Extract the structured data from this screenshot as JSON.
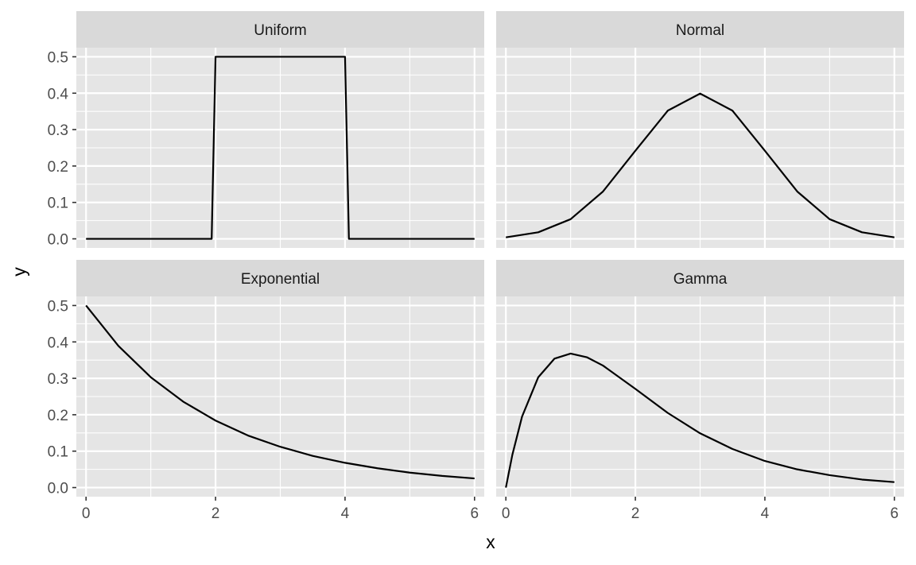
{
  "chart_data": {
    "type": "line",
    "layout": "facet-grid 2x2",
    "xlabel": "x",
    "ylabel": "y",
    "xlim": [
      -0.15,
      6.15
    ],
    "ylim": [
      -0.025,
      0.525
    ],
    "x_ticks": [
      "0",
      "2",
      "4",
      "6"
    ],
    "x_tick_values": [
      0,
      2,
      4,
      6
    ],
    "y_ticks": [
      "0.0",
      "0.1",
      "0.2",
      "0.3",
      "0.4",
      "0.5"
    ],
    "y_tick_values": [
      0,
      0.1,
      0.2,
      0.3,
      0.4,
      0.5
    ],
    "grid": true,
    "colors": {
      "panel_background": "#e5e5e5",
      "grid": "#ffffff",
      "strip_background": "#d9d9d9",
      "line": "#000000"
    },
    "panels": [
      {
        "title": "Uniform",
        "x": [
          0,
          1.94,
          2.0,
          4.0,
          4.06,
          6
        ],
        "y": [
          0,
          0,
          0.5,
          0.5,
          0,
          0
        ]
      },
      {
        "title": "Normal",
        "x": [
          0,
          0.5,
          1,
          1.5,
          2,
          2.5,
          3,
          3.5,
          4,
          4.5,
          5,
          5.5,
          6
        ],
        "y": [
          0.004,
          0.018,
          0.054,
          0.13,
          0.242,
          0.352,
          0.399,
          0.352,
          0.242,
          0.13,
          0.054,
          0.018,
          0.004
        ]
      },
      {
        "title": "Exponential",
        "x": [
          0,
          0.5,
          1,
          1.5,
          2,
          2.5,
          3,
          3.5,
          4,
          4.5,
          5,
          5.5,
          6
        ],
        "y": [
          0.5,
          0.389,
          0.303,
          0.236,
          0.184,
          0.143,
          0.112,
          0.087,
          0.068,
          0.053,
          0.041,
          0.032,
          0.025
        ]
      },
      {
        "title": "Gamma",
        "x": [
          0,
          0.1,
          0.25,
          0.5,
          0.75,
          1,
          1.25,
          1.5,
          2,
          2.5,
          3,
          3.5,
          4,
          4.5,
          5,
          5.5,
          6
        ],
        "y": [
          0,
          0.09,
          0.195,
          0.303,
          0.354,
          0.368,
          0.358,
          0.335,
          0.271,
          0.205,
          0.149,
          0.106,
          0.073,
          0.05,
          0.034,
          0.022,
          0.015
        ]
      }
    ]
  }
}
